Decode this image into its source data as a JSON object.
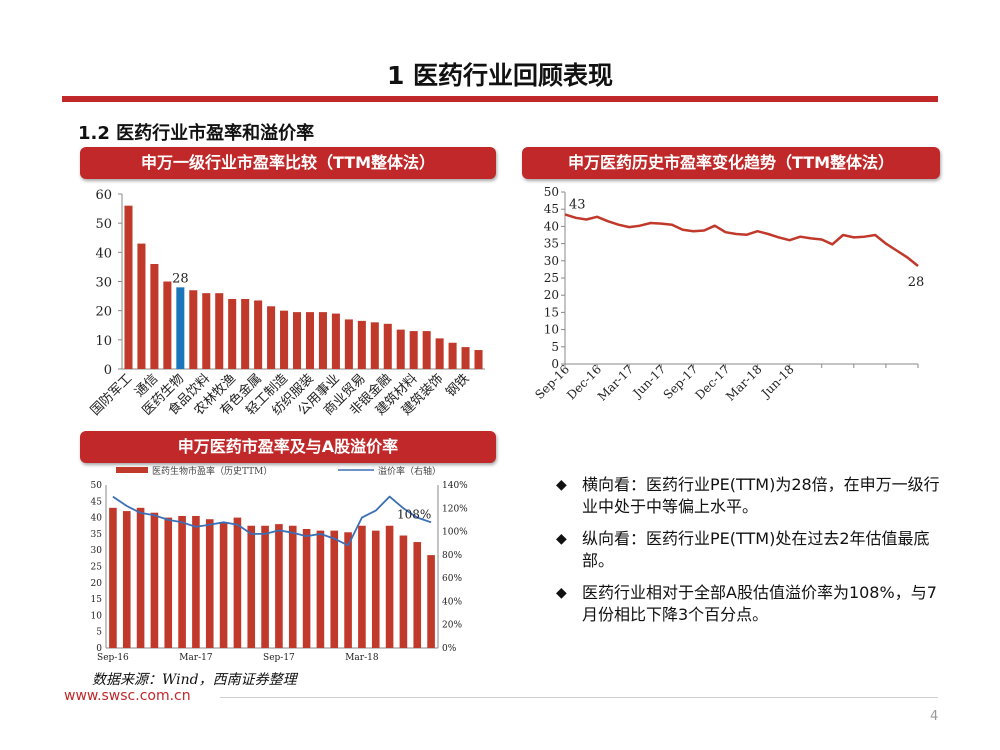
{
  "page": {
    "title": "1 医药行业回顾表现",
    "section": "1.2 医药行业市盈率和溢价率",
    "footer_url": "www.swsc.com.cn",
    "page_number": "4",
    "source_note": "数据来源：Wind，西南证券整理",
    "colors": {
      "accent": "#c0282a",
      "bar_red": "#c0392b",
      "highlight_blue": "#1a75bb",
      "line_blue": "#3b6fb6"
    }
  },
  "bullets": [
    "横向看：医药行业PE(TTM)为28倍，在申万一级行业中处于中等偏上水平。",
    "纵向看：医药行业PE(TTM)处在过去2年估值最底部。",
    "医药行业相对于全部A股估值溢价率为108%，与7月份相比下降3个百分点。"
  ],
  "bullet_icon": "diamond-icon",
  "chart_data": [
    {
      "type": "bar",
      "title": "申万一级行业市盈率比较（TTM整体法）",
      "ylim": [
        0,
        60
      ],
      "yticks": [
        0,
        10,
        20,
        30,
        40,
        50,
        60
      ],
      "values": [
        56,
        43,
        36,
        30,
        28,
        27,
        26,
        26,
        24,
        24,
        23.5,
        21.5,
        20,
        19.5,
        19.5,
        19.5,
        19,
        17,
        16.5,
        16,
        15.5,
        13.5,
        13,
        13,
        10.5,
        9,
        7.5,
        6.5
      ],
      "highlight_index": 4,
      "highlight_label": "28",
      "tick_labels": [
        {
          "index": 0,
          "label": "国防军工"
        },
        {
          "index": 2,
          "label": "通信"
        },
        {
          "index": 4,
          "label": "医药生物"
        },
        {
          "index": 6,
          "label": "食品饮料"
        },
        {
          "index": 8,
          "label": "农林牧渔"
        },
        {
          "index": 10,
          "label": "有色金属"
        },
        {
          "index": 12,
          "label": "轻工制造"
        },
        {
          "index": 14,
          "label": "纺织服装"
        },
        {
          "index": 16,
          "label": "公用事业"
        },
        {
          "index": 18,
          "label": "商业贸易"
        },
        {
          "index": 20,
          "label": "非银金融"
        },
        {
          "index": 22,
          "label": "建筑材料"
        },
        {
          "index": 24,
          "label": "建筑装饰"
        },
        {
          "index": 26,
          "label": "钢铁"
        }
      ]
    },
    {
      "type": "line",
      "title": "申万医药历史市盈率变化趋势（TTM整体法）",
      "ylim": [
        0,
        50
      ],
      "yticks": [
        0,
        5,
        10,
        15,
        20,
        25,
        30,
        35,
        40,
        45,
        50
      ],
      "values": [
        43.5,
        42.5,
        42,
        42.8,
        41.5,
        40.5,
        39.8,
        40.2,
        41,
        40.8,
        40.5,
        39,
        38.6,
        38.8,
        40.2,
        38.3,
        37.8,
        37.6,
        38.6,
        37.8,
        36.8,
        36,
        37,
        36.5,
        36.2,
        34.8,
        37.5,
        36.8,
        37,
        37.5,
        35,
        33,
        31,
        28.5
      ],
      "first_label": "43",
      "last_label": "28",
      "tick_labels": [
        {
          "index": 0,
          "label": "Sep-16"
        },
        {
          "index": 3,
          "label": "Dec-16"
        },
        {
          "index": 6,
          "label": "Mar-17"
        },
        {
          "index": 9,
          "label": "Jun-17"
        },
        {
          "index": 12,
          "label": "Sep-17"
        },
        {
          "index": 15,
          "label": "Dec-17"
        },
        {
          "index": 18,
          "label": "Mar-18"
        },
        {
          "index": 21,
          "label": "Jun-18"
        }
      ],
      "tick_step": 3
    },
    {
      "type": "bar+line",
      "title": "申万医药市盈率及与A股溢价率",
      "legend": [
        "医药生物市盈率（历史TTM）",
        "溢价率（右轴）"
      ],
      "ylim_left": [
        0,
        50
      ],
      "yticks_left": [
        0,
        5,
        10,
        15,
        20,
        25,
        30,
        35,
        40,
        45,
        50
      ],
      "ylim_right": [
        0,
        140
      ],
      "yticks_right": [
        "0%",
        "20%",
        "40%",
        "60%",
        "80%",
        "100%",
        "120%",
        "140%"
      ],
      "bar_values": [
        43,
        42,
        43,
        41.5,
        40,
        40.5,
        40.5,
        39.5,
        38.5,
        40,
        37.5,
        37.5,
        38,
        37.5,
        36.5,
        36,
        36,
        35.5,
        37.5,
        36,
        37.5,
        34.5,
        32.5,
        28.5
      ],
      "premium_values": [
        130,
        122,
        116,
        114,
        110,
        108,
        104,
        106,
        108,
        106,
        98,
        98,
        101,
        99,
        96,
        98,
        94,
        88,
        112,
        118,
        130,
        120,
        112,
        108
      ],
      "premium_label": "108%",
      "x_tick_labels": [
        {
          "index": 0,
          "label": "Sep-16"
        },
        {
          "index": 6,
          "label": "Mar-17"
        },
        {
          "index": 12,
          "label": "Sep-17"
        },
        {
          "index": 18,
          "label": "Mar-18"
        }
      ]
    }
  ]
}
